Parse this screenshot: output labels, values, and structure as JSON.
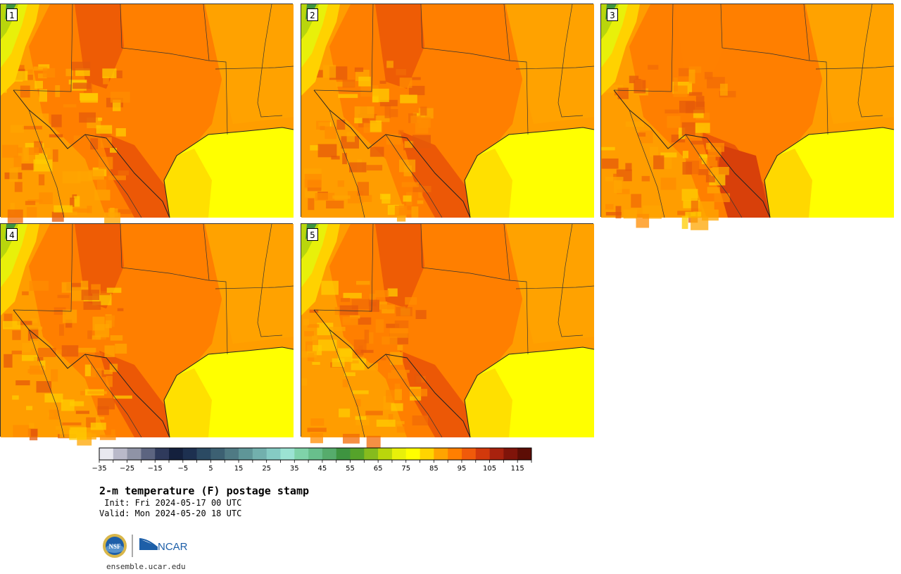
{
  "panels": [
    {
      "label": "1",
      "variant": 0
    },
    {
      "label": "2",
      "variant": 1
    },
    {
      "label": "3",
      "variant": 2
    },
    {
      "label": "4",
      "variant": 3
    },
    {
      "label": "5",
      "variant": 4
    }
  ],
  "colorbar": {
    "ticks": [
      "−35",
      "−25",
      "−15",
      "−5",
      "5",
      "15",
      "25",
      "35",
      "45",
      "55",
      "65",
      "75",
      "85",
      "95",
      "105",
      "115"
    ],
    "colors": [
      "#e8e8ef",
      "#b9b9c9",
      "#8f93a6",
      "#5c6480",
      "#2f3a5c",
      "#14203d",
      "#1d3050",
      "#2b4a63",
      "#3c6072",
      "#4f7a84",
      "#5f9698",
      "#72b0ad",
      "#85cbc3",
      "#9be3d3",
      "#7fd3a9",
      "#68bf8c",
      "#56ac6c",
      "#3e9440",
      "#55a32a",
      "#86bb1d",
      "#b9d60c",
      "#e8f00a",
      "#ffff00",
      "#ffd400",
      "#ffa400",
      "#ff7f00",
      "#f05a0a",
      "#d2390c",
      "#a8220e",
      "#80140a",
      "#5c0d05"
    ]
  },
  "title": "2-m temperature (F) postage stamp",
  "init": " Init: Fri 2024-05-17 00 UTC",
  "valid": "Valid: Mon 2024-05-20 18 UTC",
  "logo_nsf": "NSF",
  "logo_ncar": "NCAR",
  "site": "ensemble.ucar.edu"
}
